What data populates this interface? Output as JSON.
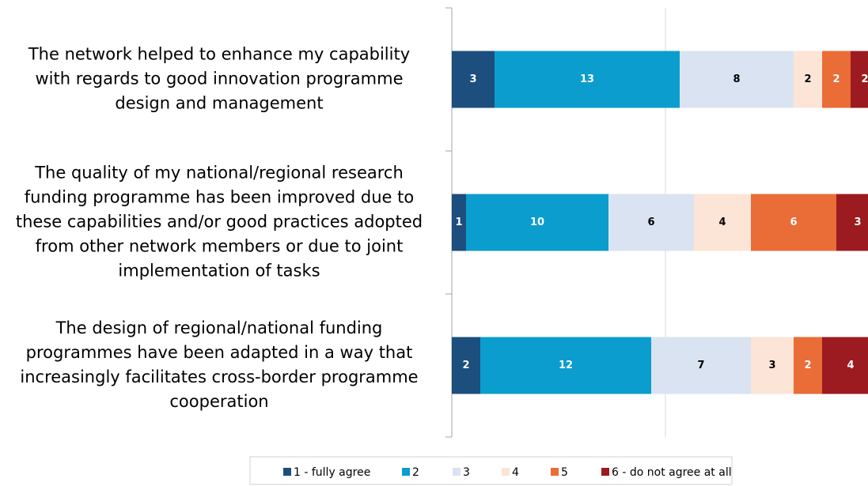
{
  "chart_data": {
    "type": "stacked-bar-horizontal",
    "categories": [
      [
        "The network helped to enhance my capability",
        "with regards to good innovation programme",
        "design and management"
      ],
      [
        "The quality of my national/regional research",
        "funding programme has been improved due to",
        "these capabilities and/or good practices adopted",
        "from other network members or due to joint",
        "implementation of tasks"
      ],
      [
        "The design of regional/national funding",
        "programmes have been adapted in a way that",
        "increasingly facilitates cross-border programme",
        "cooperation"
      ]
    ],
    "series": [
      {
        "name": "1 - fully agree",
        "color": "#1c4e7e",
        "label_color": "#ffffff",
        "values": [
          3,
          1,
          2
        ]
      },
      {
        "name": "2",
        "color": "#0b9dcd",
        "label_color": "#ffffff",
        "values": [
          13,
          10,
          12
        ]
      },
      {
        "name": "3",
        "color": "#dae3f2",
        "label_color": "#000000",
        "values": [
          8,
          6,
          7
        ]
      },
      {
        "name": "4",
        "color": "#fce5d6",
        "label_color": "#000000",
        "values": [
          2,
          4,
          3
        ]
      },
      {
        "name": "5",
        "color": "#ea6c37",
        "label_color": "#ffffff",
        "values": [
          2,
          6,
          2
        ]
      },
      {
        "name": "6 - do not agree at all",
        "color": "#9c1b20",
        "label_color": "#ffffff",
        "values": [
          2,
          3,
          4
        ]
      }
    ],
    "xlim": [
      0,
      30
    ],
    "xticks": [
      0,
      15,
      30
    ],
    "grid": true,
    "legend": "bottom"
  }
}
